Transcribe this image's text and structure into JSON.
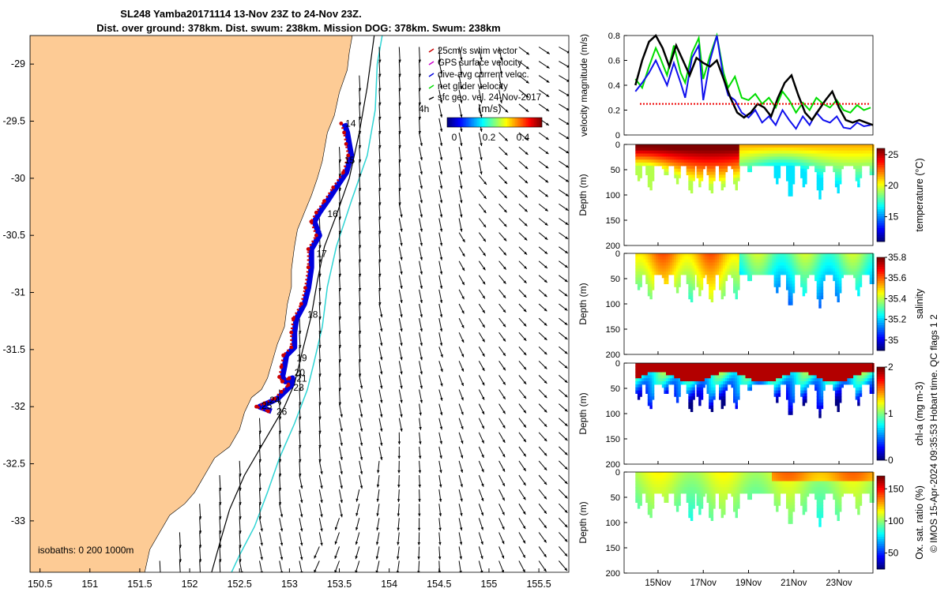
{
  "title_line1": "SL248 Yamba20171114 13-Nov 23Z to 24-Nov 23Z.",
  "title_line2": "Dist. over ground: 378km. Dist. swum: 238km. Mission DOG: 378km. Swum: 238km",
  "credit": "© IMOS 15-Apr-2024 09:35:53 Hobart time. QC flags 1  2",
  "colors": {
    "land": "#fdcb95",
    "isobath_0": "#000000",
    "isobath_200": "#000000",
    "isobath_1000": "#2fd4d4",
    "gps": "#cc0000",
    "current": "#0000dd",
    "glider": "#00dd00",
    "swim_ref": "#cc0000",
    "geo_vec": "#000000"
  },
  "chart_data": [
    {
      "type": "scatter",
      "name": "map",
      "xlim": [
        150.4,
        155.8
      ],
      "ylim": [
        -33.45,
        -28.75
      ],
      "x_ticks": [
        "150.5",
        "151",
        "151.5",
        "152",
        "152.5",
        "153",
        "153.5",
        "154",
        "154.5",
        "155",
        "155.5"
      ],
      "y_ticks": [
        "-29",
        "-29.5",
        "-30",
        "-30.5",
        "-31",
        "-31.5",
        "-32",
        "-32.5",
        "-33"
      ],
      "legend": [
        "25cm/s swim vector",
        "GPS surface velocity",
        "dive-avg current veloc.",
        "net glider velocity",
        "sfc geo. vel. 24-Nov-2017"
      ],
      "colorbar": {
        "label": "(m/s)",
        "ticks": [
          "0",
          "0.2",
          "0.4"
        ],
        "range": [
          0,
          0.5
        ]
      },
      "isobaths_label": "isobaths: 0   200  1000m",
      "marker_label": "4h",
      "day_labels": [
        {
          "day": "14",
          "lon": 153.56,
          "lat": -29.55
        },
        {
          "day": "15",
          "lon": 153.55,
          "lat": -29.87
        },
        {
          "day": "16",
          "lon": 153.38,
          "lat": -30.34
        },
        {
          "day": "17",
          "lon": 153.27,
          "lat": -30.69
        },
        {
          "day": "18",
          "lon": 153.18,
          "lat": -31.22
        },
        {
          "day": "19",
          "lon": 153.07,
          "lat": -31.6
        },
        {
          "day": "20",
          "lon": 153.05,
          "lat": -31.73
        },
        {
          "day": "21",
          "lon": 153.07,
          "lat": -31.78
        },
        {
          "day": "23",
          "lon": 153.04,
          "lat": -31.86
        },
        {
          "day": "24",
          "lon": 152.8,
          "lat": -31.97
        },
        {
          "day": "25",
          "lon": 152.72,
          "lat": -32.02
        },
        {
          "day": "26",
          "lon": 152.87,
          "lat": -32.07
        }
      ],
      "track": [
        [
          153.55,
          -29.52
        ],
        [
          153.58,
          -29.6
        ],
        [
          153.6,
          -29.7
        ],
        [
          153.62,
          -29.8
        ],
        [
          153.57,
          -29.95
        ],
        [
          153.47,
          -30.08
        ],
        [
          153.38,
          -30.2
        ],
        [
          153.3,
          -30.3
        ],
        [
          153.25,
          -30.38
        ],
        [
          153.3,
          -30.5
        ],
        [
          153.22,
          -30.62
        ],
        [
          153.22,
          -30.78
        ],
        [
          153.19,
          -30.96
        ],
        [
          153.15,
          -31.1
        ],
        [
          153.07,
          -31.23
        ],
        [
          153.05,
          -31.35
        ],
        [
          153.05,
          -31.48
        ],
        [
          152.97,
          -31.55
        ],
        [
          152.95,
          -31.65
        ],
        [
          152.93,
          -31.74
        ],
        [
          152.96,
          -31.78
        ],
        [
          153.03,
          -31.75
        ],
        [
          153.02,
          -31.81
        ],
        [
          152.95,
          -31.87
        ],
        [
          152.88,
          -31.93
        ],
        [
          152.78,
          -31.97
        ],
        [
          152.7,
          -32.0
        ],
        [
          152.82,
          -32.04
        ]
      ]
    },
    {
      "type": "line",
      "name": "velocity",
      "ylabel": "velocity magnitude (m/s)",
      "xlim": [
        13.5,
        24.5
      ],
      "ylim": [
        0,
        0.8
      ],
      "y_ticks": [
        "0",
        "0.2",
        "0.4",
        "0.6",
        "0.8"
      ],
      "series": [
        {
          "color": "green",
          "x": [
            14.0,
            14.3,
            14.6,
            14.9,
            15.1,
            15.4,
            15.7,
            16.0,
            16.2,
            16.5,
            16.8,
            17.0,
            17.3,
            17.6,
            17.9,
            18.1,
            18.4,
            18.7,
            19.0,
            19.3,
            19.6,
            19.9,
            20.2,
            20.5,
            20.8,
            21.1,
            21.4,
            21.7,
            22.0,
            22.3,
            22.6,
            22.9,
            23.2,
            23.5,
            23.8,
            24.1,
            24.4
          ],
          "y": [
            0.45,
            0.38,
            0.55,
            0.7,
            0.62,
            0.48,
            0.72,
            0.5,
            0.42,
            0.66,
            0.78,
            0.45,
            0.64,
            0.8,
            0.5,
            0.38,
            0.47,
            0.3,
            0.28,
            0.33,
            0.25,
            0.3,
            0.22,
            0.35,
            0.28,
            0.18,
            0.26,
            0.2,
            0.3,
            0.25,
            0.22,
            0.28,
            0.2,
            0.18,
            0.24,
            0.2,
            0.22
          ]
        },
        {
          "color": "blue",
          "x": [
            14.0,
            14.3,
            14.6,
            14.9,
            15.1,
            15.4,
            15.7,
            16.0,
            16.2,
            16.5,
            16.8,
            17.0,
            17.3,
            17.6,
            17.9,
            18.1,
            18.4,
            18.7,
            19.0,
            19.3,
            19.6,
            19.9,
            20.2,
            20.5,
            20.8,
            21.1,
            21.4,
            21.7,
            22.0,
            22.3,
            22.6,
            22.9,
            23.2,
            23.5,
            23.8,
            24.1,
            24.4
          ],
          "y": [
            0.35,
            0.42,
            0.5,
            0.6,
            0.52,
            0.4,
            0.58,
            0.42,
            0.3,
            0.62,
            0.72,
            0.28,
            0.6,
            0.8,
            0.45,
            0.32,
            0.28,
            0.18,
            0.14,
            0.2,
            0.1,
            0.15,
            0.08,
            0.2,
            0.12,
            0.05,
            0.15,
            0.08,
            0.18,
            0.12,
            0.1,
            0.15,
            0.06,
            0.05,
            0.1,
            0.07,
            0.08
          ]
        },
        {
          "color": "black",
          "x": [
            14.0,
            14.3,
            14.6,
            14.9,
            15.2,
            15.5,
            15.8,
            16.1,
            16.4,
            16.7,
            17.0,
            17.3,
            17.6,
            17.9,
            18.2,
            18.5,
            18.8,
            19.1,
            19.4,
            19.7,
            20.0,
            20.3,
            20.6,
            20.9,
            21.2,
            21.5,
            21.8,
            22.1,
            22.4,
            22.7,
            23.0,
            23.3,
            23.6,
            23.9,
            24.2,
            24.5
          ],
          "y": [
            0.4,
            0.6,
            0.75,
            0.82,
            0.7,
            0.55,
            0.72,
            0.6,
            0.48,
            0.62,
            0.58,
            0.55,
            0.6,
            0.45,
            0.3,
            0.18,
            0.14,
            0.18,
            0.25,
            0.22,
            0.15,
            0.3,
            0.42,
            0.48,
            0.32,
            0.18,
            0.12,
            0.2,
            0.28,
            0.35,
            0.22,
            0.12,
            0.1,
            0.12,
            0.1,
            0.08
          ]
        },
        {
          "color": "red",
          "dashed": true,
          "x": [
            14.2,
            24.4
          ],
          "y": [
            0.25,
            0.25
          ]
        }
      ]
    },
    {
      "type": "heatmap",
      "name": "temperature",
      "ylabel": "Depth (m)",
      "cbar_label": "temperature (°C)",
      "clim": [
        11,
        26
      ],
      "cbar_ticks": [
        "15",
        "20",
        "25"
      ],
      "y_ticks": [
        "0",
        "50",
        "100",
        "150",
        "200"
      ],
      "ylim": [
        200,
        0
      ]
    },
    {
      "type": "heatmap",
      "name": "salinity",
      "ylabel": "Depth (m)",
      "cbar_label": "salinity",
      "clim": [
        34.9,
        35.8
      ],
      "cbar_ticks": [
        "35",
        "35.2",
        "35.4",
        "35.6",
        "35.8"
      ],
      "y_ticks": [
        "0",
        "50",
        "100",
        "150",
        "200"
      ],
      "ylim": [
        200,
        0
      ]
    },
    {
      "type": "heatmap",
      "name": "chl-a",
      "ylabel": "Depth (m)",
      "cbar_label": "chl-a (mg m-3)",
      "clim": [
        0,
        2
      ],
      "cbar_ticks": [
        "0",
        "1",
        "2"
      ],
      "y_ticks": [
        "0",
        "50",
        "100",
        "150",
        "200"
      ],
      "ylim": [
        200,
        0
      ]
    },
    {
      "type": "heatmap",
      "name": "oxygen",
      "ylabel": "Depth (m)",
      "cbar_label": "Ox. sat. ratio (%)",
      "clim": [
        25,
        170
      ],
      "cbar_ticks": [
        "50",
        "100",
        "150"
      ],
      "y_ticks": [
        "0",
        "50",
        "100",
        "150",
        "200"
      ],
      "ylim": [
        200,
        0
      ],
      "x_ticks": [
        "15Nov",
        "17Nov",
        "19Nov",
        "21Nov",
        "23Nov"
      ]
    }
  ]
}
